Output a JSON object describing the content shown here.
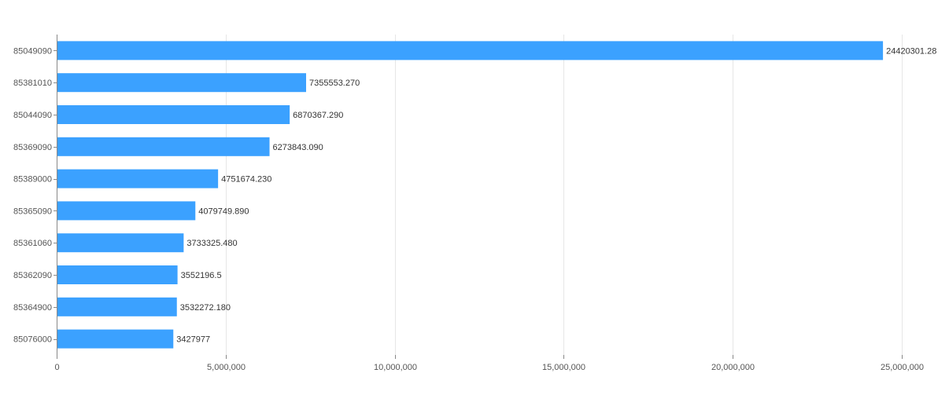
{
  "chart_data": {
    "type": "bar",
    "orientation": "horizontal",
    "title": "",
    "xlabel": "",
    "ylabel": "",
    "categories": [
      "85049090",
      "85381010",
      "85044090",
      "85369090",
      "85389000",
      "85365090",
      "85361060",
      "85362090",
      "85364900",
      "85076000"
    ],
    "values": [
      24420301.28,
      7355553.27,
      6870367.29,
      6273843.09,
      4751674.23,
      4079749.89,
      3733325.48,
      3552196.5,
      3532272.18,
      3427977
    ],
    "data_labels": [
      "24420301.28",
      "7355553.270",
      "6870367.290",
      "6273843.090",
      "4751674.230",
      "4079749.890",
      "3733325.480",
      "3552196.5",
      "3532272.180",
      "3427977"
    ],
    "xlim": [
      0,
      25000000
    ],
    "x_ticks": [
      0,
      5000000,
      10000000,
      15000000,
      20000000,
      25000000
    ],
    "x_tick_labels": [
      "0",
      "5,000,000",
      "10,000,000",
      "15,000,000",
      "20,000,000",
      "25,000,000"
    ],
    "grid": "vertical",
    "legend": "none",
    "bar_color": "#3ba1ff"
  }
}
